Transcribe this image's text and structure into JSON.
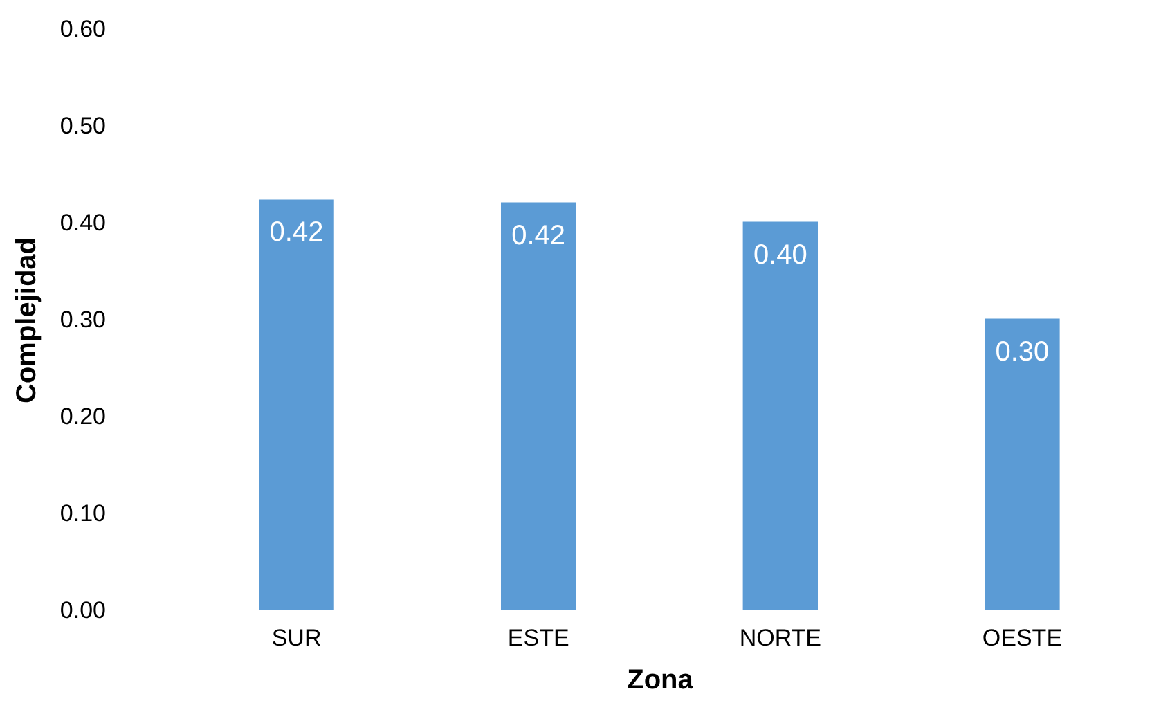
{
  "chart_data": {
    "type": "bar",
    "xlabel": "Zona",
    "ylabel": "Complejidad",
    "categories": [
      "SUR",
      "ESTE",
      "NORTE",
      "OESTE"
    ],
    "values": [
      0.424,
      0.421,
      0.401,
      0.301
    ],
    "value_labels": [
      "0.42",
      "0.42",
      "0.40",
      "0.30"
    ],
    "color": "#5b9bd5",
    "ylim": [
      0,
      0.6
    ],
    "yticks": [
      {
        "value": 0,
        "label": "0.00"
      },
      {
        "value": 0.1,
        "label": "0.10"
      },
      {
        "value": 0.2,
        "label": "0.20"
      },
      {
        "value": 0.3,
        "label": "0.30"
      },
      {
        "value": 0.4,
        "label": "0.40"
      },
      {
        "value": 0.5,
        "label": "0.50"
      },
      {
        "value": 0.6,
        "label": "0.60"
      }
    ],
    "grid": false
  }
}
